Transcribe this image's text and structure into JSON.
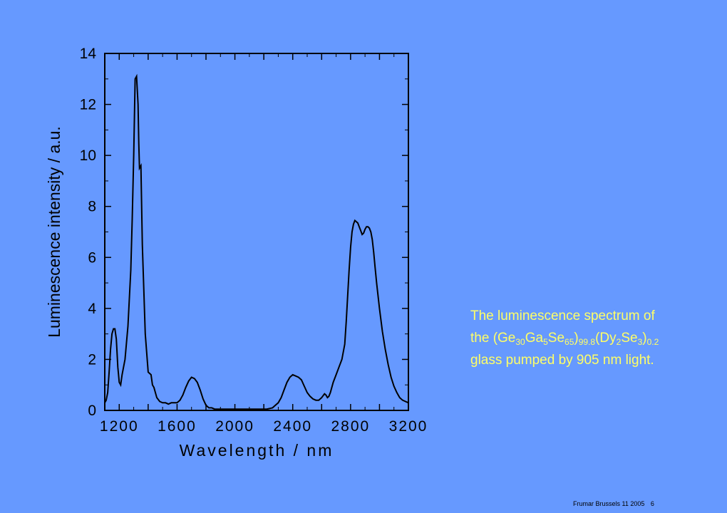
{
  "chart_data": {
    "type": "line",
    "xlabel": "Wavelength / nm",
    "ylabel": "Luminescence intensity / a.u.",
    "xlim": [
      1100,
      3200
    ],
    "ylim": [
      0,
      14
    ],
    "x_ticks": [
      1200,
      1600,
      2000,
      2400,
      2800,
      3200
    ],
    "y_ticks": [
      0,
      2,
      4,
      6,
      8,
      10,
      12,
      14
    ],
    "grid": false,
    "series": [
      {
        "color": "#000000",
        "x": [
          1100,
          1110,
          1120,
          1130,
          1140,
          1150,
          1160,
          1170,
          1180,
          1190,
          1200,
          1210,
          1220,
          1240,
          1260,
          1280,
          1290,
          1300,
          1305,
          1310,
          1320,
          1330,
          1335,
          1340,
          1350,
          1360,
          1380,
          1400,
          1420,
          1430,
          1440,
          1450,
          1460,
          1480,
          1500,
          1520,
          1540,
          1560,
          1580,
          1600,
          1620,
          1640,
          1660,
          1680,
          1700,
          1720,
          1740,
          1760,
          1780,
          1800,
          1820,
          1840,
          1860,
          1880,
          1900,
          1940,
          1980,
          2020,
          2060,
          2100,
          2140,
          2180,
          2220,
          2260,
          2280,
          2300,
          2320,
          2340,
          2360,
          2380,
          2400,
          2420,
          2440,
          2460,
          2480,
          2500,
          2520,
          2540,
          2560,
          2580,
          2600,
          2620,
          2630,
          2640,
          2650,
          2660,
          2670,
          2680,
          2700,
          2720,
          2740,
          2760,
          2770,
          2780,
          2790,
          2800,
          2810,
          2820,
          2830,
          2840,
          2850,
          2860,
          2870,
          2880,
          2890,
          2900,
          2910,
          2920,
          2930,
          2940,
          2950,
          2960,
          2970,
          2980,
          2990,
          3000,
          3020,
          3040,
          3060,
          3080,
          3100,
          3120,
          3140,
          3160,
          3180,
          3200
        ],
        "y": [
          0.3,
          0.4,
          0.7,
          1.5,
          2.4,
          3.0,
          3.2,
          3.2,
          2.8,
          1.7,
          1.1,
          1.0,
          1.4,
          2.0,
          3.3,
          5.5,
          7.5,
          10.0,
          11.5,
          13.0,
          13.1,
          12.0,
          10.5,
          9.5,
          9.6,
          6.5,
          3.0,
          1.5,
          1.4,
          1.0,
          0.9,
          0.7,
          0.5,
          0.35,
          0.3,
          0.3,
          0.25,
          0.3,
          0.3,
          0.3,
          0.4,
          0.6,
          0.9,
          1.15,
          1.3,
          1.25,
          1.1,
          0.8,
          0.45,
          0.2,
          0.1,
          0.1,
          0.05,
          0.05,
          0.05,
          0.05,
          0.05,
          0.05,
          0.05,
          0.05,
          0.05,
          0.05,
          0.05,
          0.1,
          0.2,
          0.3,
          0.5,
          0.8,
          1.1,
          1.3,
          1.4,
          1.35,
          1.3,
          1.2,
          0.95,
          0.7,
          0.55,
          0.45,
          0.4,
          0.4,
          0.5,
          0.65,
          0.6,
          0.5,
          0.55,
          0.7,
          0.9,
          1.1,
          1.4,
          1.7,
          2.0,
          2.6,
          3.5,
          4.5,
          5.5,
          6.4,
          7.0,
          7.3,
          7.45,
          7.4,
          7.35,
          7.2,
          7.05,
          6.9,
          6.95,
          7.1,
          7.2,
          7.2,
          7.15,
          7.0,
          6.7,
          6.2,
          5.6,
          5.0,
          4.5,
          4.0,
          3.1,
          2.4,
          1.8,
          1.3,
          0.95,
          0.7,
          0.5,
          0.4,
          0.35,
          0.3
        ]
      }
    ]
  },
  "caption": {
    "line1": "The luminescence spectrum of",
    "line2_prefix": "the (Ge",
    "ge_sub": "30",
    "ga": "Ga",
    "ga_sub": "5",
    "se": "Se",
    "se_sub": "65",
    "paren_close": ")",
    "main_sub": "99.8",
    "dy_open": "(Dy",
    "dy_sub": "2",
    "se2": "Se",
    "se2_sub": "3",
    "paren_close2": ")",
    "dopant_sub": "0.2",
    "line3": "glass pumped by 905 nm light."
  },
  "footer": {
    "text": "Frumar Brussels 11 2005",
    "page": "6"
  },
  "colors": {
    "background": "#6699FF",
    "caption": "#FFFF66",
    "line": "#000000"
  }
}
